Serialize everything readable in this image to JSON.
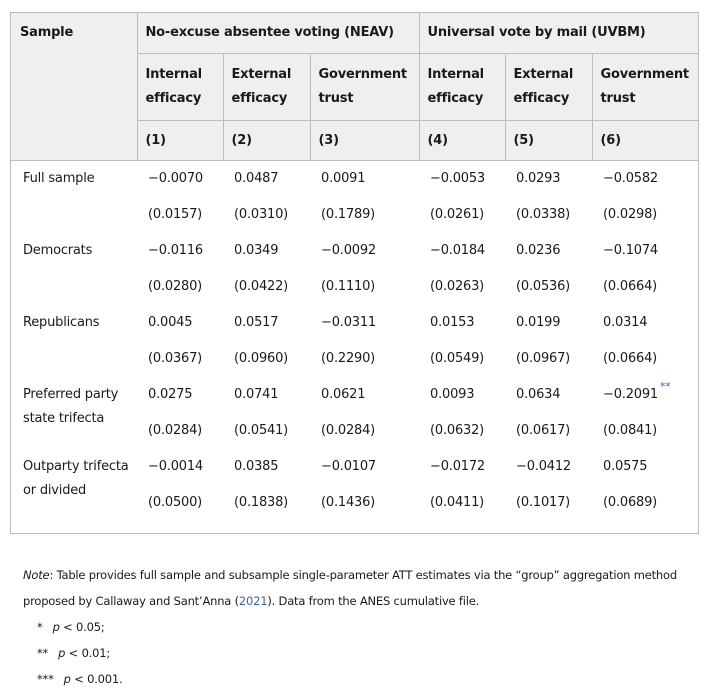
{
  "table": {
    "sample_header": "Sample",
    "groups": [
      "No-excuse absentee voting (NEAV)",
      "Universal vote by mail (UVBM)"
    ],
    "columns": [
      {
        "label_line1": "Internal",
        "label_line2": "efficacy",
        "number": "(1)"
      },
      {
        "label_line1": "External",
        "label_line2": "efficacy",
        "number": "(2)"
      },
      {
        "label_line1": "Government",
        "label_line2": "trust",
        "number": "(3)"
      },
      {
        "label_line1": "Internal",
        "label_line2": "efficacy",
        "number": "(4)"
      },
      {
        "label_line1": "External",
        "label_line2": "efficacy",
        "number": "(5)"
      },
      {
        "label_line1": "Government",
        "label_line2": "trust",
        "number": "(6)"
      }
    ],
    "rows": [
      {
        "label": "Full sample",
        "estimates": [
          "−0.0070",
          "0.0487",
          "0.0091",
          "−0.0053",
          "0.0293",
          "−0.0582"
        ],
        "se": [
          "(0.0157)",
          "(0.0310)",
          "(0.1789)",
          "(0.0261)",
          "(0.0338)",
          "(0.0298)"
        ]
      },
      {
        "label": "Democrats",
        "estimates": [
          "−0.0116",
          "0.0349",
          "−0.0092",
          "−0.0184",
          "0.0236",
          "−0.1074"
        ],
        "se": [
          "(0.0280)",
          "(0.0422)",
          "(0.1110)",
          "(0.0263)",
          "(0.0536)",
          "(0.0664)"
        ]
      },
      {
        "label": "Republicans",
        "estimates": [
          "0.0045",
          "0.0517",
          "−0.0311",
          "0.0153",
          "0.0199",
          "0.0314"
        ],
        "se": [
          "(0.0367)",
          "(0.0960)",
          "(0.2290)",
          "(0.0549)",
          "(0.0967)",
          "(0.0664)"
        ]
      },
      {
        "label": "Preferred party state trifecta",
        "estimates": [
          "0.0275",
          "0.0741",
          "0.0621",
          "0.0093",
          "0.0634",
          "−0.2091"
        ],
        "se": [
          "(0.0284)",
          "(0.0541)",
          "(0.0284)",
          "(0.0632)",
          "(0.0617)",
          "(0.0841)"
        ],
        "sig": [
          "",
          "",
          "",
          "",
          "",
          "**"
        ]
      },
      {
        "label": "Outparty trifecta or divided",
        "estimates": [
          "−0.0014",
          "0.0385",
          "−0.0107",
          "−0.0172",
          "−0.0412",
          "0.0575"
        ],
        "se": [
          "(0.0500)",
          "(0.1838)",
          "(0.1436)",
          "(0.0411)",
          "(0.1017)",
          "(0.0689)"
        ]
      }
    ]
  },
  "notes": {
    "note_label": "Note",
    "note_text_1": ": Table provides full sample and subsample single-parameter ATT estimates via the “group” aggregation method",
    "note_text_2a": "proposed by Callaway and Sant’Anna (",
    "note_link": "2021",
    "note_text_2b": "). Data from the ANES cumulative file.",
    "footnotes": [
      {
        "stars": "*",
        "p": "p",
        "text": " < 0.05;"
      },
      {
        "stars": "**",
        "p": "p",
        "text": " < 0.01;"
      },
      {
        "stars": "***",
        "p": "p",
        "text": " < 0.001."
      }
    ]
  },
  "colors": {
    "header_bg": "#efefef",
    "link": "#3a63a8",
    "border": "#bdbdbd"
  }
}
